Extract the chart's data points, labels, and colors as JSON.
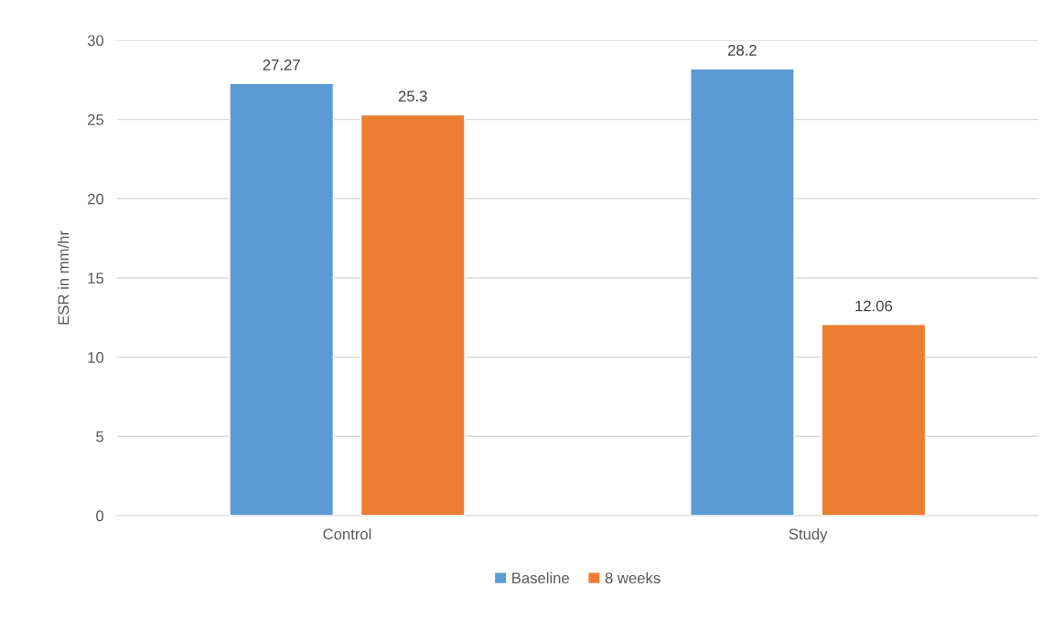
{
  "chart_data": {
    "type": "bar",
    "ylabel": "ESR in mm/hr",
    "categories": [
      "Control",
      "Study"
    ],
    "series": [
      {
        "name": "Baseline",
        "color": "#5b9bd5",
        "values": [
          27.27,
          28.2
        ]
      },
      {
        "name": "8 weeks",
        "color": "#ed7d31",
        "values": [
          25.3,
          12.06
        ]
      }
    ],
    "ylim": [
      0,
      30
    ],
    "yticks": [
      0,
      5,
      10,
      15,
      20,
      25,
      30
    ],
    "grid": "y",
    "legend": "bottom",
    "data_labels": true
  }
}
